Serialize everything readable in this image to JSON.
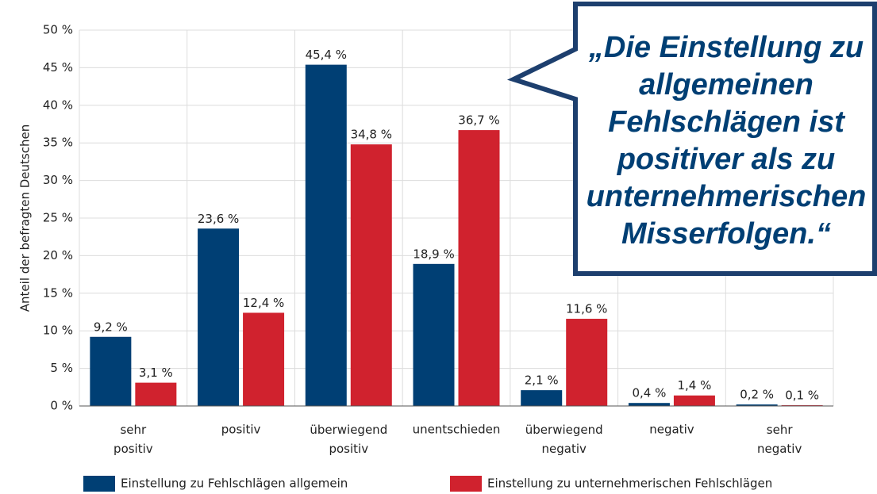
{
  "chart_data": {
    "type": "bar",
    "ylabel": "Anteil der befragten Deutschen",
    "categories": [
      "sehr positiv",
      "positiv",
      "überwiegend positiv",
      "unentschieden",
      "überwiegend negativ",
      "negativ",
      "sehr negativ"
    ],
    "series": [
      {
        "name": "Einstellung zu Fehlschlägen allgemein",
        "color": "#003f74",
        "values": [
          9.2,
          23.6,
          45.4,
          18.9,
          2.1,
          0.4,
          0.2
        ],
        "value_labels": [
          "9,2 %",
          "23,6 %",
          "45,4 %",
          "18,9 %",
          "2,1 %",
          "0,4 %",
          "0,2 %"
        ]
      },
      {
        "name": "Einstellung zu unternehmerischen Fehlschlägen",
        "color": "#d0222e",
        "values": [
          3.1,
          12.4,
          34.8,
          36.7,
          11.6,
          1.4,
          0.1
        ],
        "value_labels": [
          "3,1 %",
          "12,4 %",
          "34,8 %",
          "36,7 %",
          "11,6 %",
          "1,4 %",
          "0,1 %"
        ]
      }
    ],
    "ylim": [
      0,
      50
    ],
    "yticks": [
      {
        "value": 0,
        "label": "0 %"
      },
      {
        "value": 5,
        "label": "5 %"
      },
      {
        "value": 10,
        "label": "10 %"
      },
      {
        "value": 15,
        "label": "15 %"
      },
      {
        "value": 20,
        "label": "20 %"
      },
      {
        "value": 25,
        "label": "25 %"
      },
      {
        "value": 30,
        "label": "30 %"
      },
      {
        "value": 35,
        "label": "35 %"
      },
      {
        "value": 40,
        "label": "40 %"
      },
      {
        "value": 45,
        "label": "45 %"
      },
      {
        "value": 50,
        "label": "50 %"
      }
    ],
    "grid": true,
    "legend": "bottom",
    "annotations": [
      "„Die Einstellung zu",
      "allgemeinen",
      "Fehlschlägen ist",
      "positiver als zu",
      "unternehmerischen",
      "Misserfolgen.“"
    ]
  }
}
